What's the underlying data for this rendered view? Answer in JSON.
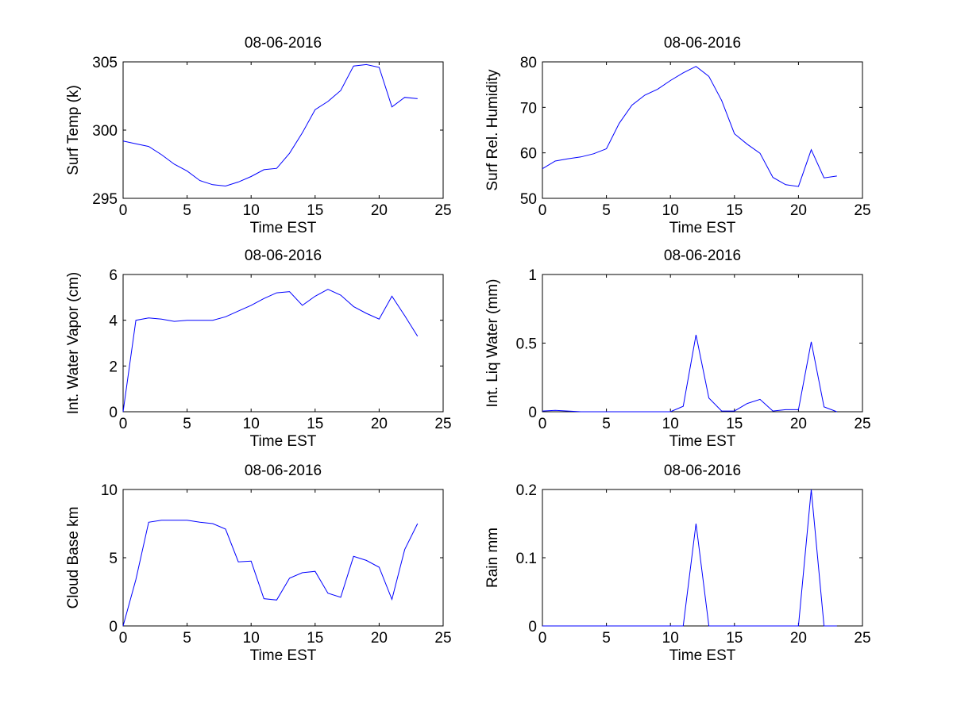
{
  "colors": {
    "line": "#0000ff",
    "axes": "#000000",
    "background": "#ffffff"
  },
  "chart_data": [
    {
      "type": "line",
      "title": "08-06-2016",
      "xlabel": "Time EST",
      "ylabel": "Surf Temp (k)",
      "xlim": [
        0,
        25
      ],
      "ylim": [
        295,
        305
      ],
      "xticks": [
        0,
        5,
        10,
        15,
        20,
        25
      ],
      "yticks": [
        295,
        300,
        305
      ],
      "x": [
        0,
        1,
        2,
        3,
        4,
        5,
        6,
        7,
        8,
        9,
        10,
        11,
        12,
        13,
        14,
        15,
        16,
        17,
        18,
        19,
        20,
        21,
        22,
        23
      ],
      "series": [
        {
          "name": "Surf Temp",
          "values": [
            299.2,
            299.0,
            298.8,
            298.2,
            297.5,
            297.0,
            296.3,
            296.0,
            295.9,
            296.2,
            296.6,
            297.1,
            297.2,
            298.3,
            299.8,
            301.5,
            302.1,
            302.9,
            304.7,
            304.8,
            304.6,
            301.7,
            302.4,
            302.3
          ]
        }
      ]
    },
    {
      "type": "line",
      "title": "08-06-2016",
      "xlabel": "Time EST",
      "ylabel": "Surf Rel. Humidity",
      "xlim": [
        0,
        25
      ],
      "ylim": [
        50,
        80
      ],
      "xticks": [
        0,
        5,
        10,
        15,
        20,
        25
      ],
      "yticks": [
        50,
        60,
        70,
        80
      ],
      "x": [
        0,
        1,
        2,
        3,
        4,
        5,
        6,
        7,
        8,
        9,
        10,
        11,
        12,
        13,
        14,
        15,
        16,
        17,
        18,
        19,
        20,
        21,
        22,
        23
      ],
      "series": [
        {
          "name": "Surf Rel. Humidity",
          "values": [
            56.5,
            58.2,
            58.7,
            59.1,
            59.8,
            60.9,
            66.5,
            70.5,
            72.7,
            74.0,
            75.9,
            77.6,
            79.0,
            76.8,
            71.5,
            64.2,
            61.9,
            59.9,
            54.6,
            53.0,
            52.6,
            60.7,
            54.5,
            54.9
          ]
        }
      ]
    },
    {
      "type": "line",
      "title": "08-06-2016",
      "xlabel": "Time EST",
      "ylabel": "Int. Water Vapor (cm)",
      "xlim": [
        0,
        25
      ],
      "ylim": [
        0,
        6
      ],
      "xticks": [
        0,
        5,
        10,
        15,
        20,
        25
      ],
      "yticks": [
        0,
        2,
        4,
        6
      ],
      "x": [
        0,
        1,
        2,
        3,
        4,
        5,
        6,
        7,
        8,
        9,
        10,
        11,
        12,
        13,
        14,
        15,
        16,
        17,
        18,
        19,
        20,
        21,
        22,
        23
      ],
      "series": [
        {
          "name": "Int. Water Vapor",
          "values": [
            0.0,
            4.0,
            4.1,
            4.05,
            3.95,
            4.0,
            4.0,
            4.0,
            4.15,
            4.4,
            4.65,
            4.95,
            5.2,
            5.25,
            4.65,
            5.05,
            5.35,
            5.1,
            4.6,
            4.3,
            4.05,
            5.05,
            4.2,
            3.3
          ]
        }
      ]
    },
    {
      "type": "line",
      "title": "08-06-2016",
      "xlabel": "Time EST",
      "ylabel": "Int. Liq Water (mm)",
      "xlim": [
        0,
        25
      ],
      "ylim": [
        0,
        1
      ],
      "xticks": [
        0,
        5,
        10,
        15,
        20,
        25
      ],
      "yticks": [
        0,
        0.5,
        1
      ],
      "x": [
        0,
        1,
        2,
        3,
        4,
        5,
        6,
        7,
        8,
        9,
        10,
        11,
        12,
        13,
        14,
        15,
        16,
        17,
        18,
        19,
        20,
        21,
        22,
        23
      ],
      "series": [
        {
          "name": "Int. Liq Water",
          "values": [
            0.005,
            0.01,
            0.005,
            0,
            0,
            0,
            0,
            0,
            0,
            0,
            0,
            0.04,
            0.56,
            0.1,
            0.005,
            0.005,
            0.06,
            0.09,
            0.005,
            0.015,
            0.015,
            0.51,
            0.035,
            0
          ]
        }
      ]
    },
    {
      "type": "line",
      "title": "08-06-2016",
      "xlabel": "Time EST",
      "ylabel": "Cloud Base km",
      "xlim": [
        0,
        25
      ],
      "ylim": [
        0,
        10
      ],
      "xticks": [
        0,
        5,
        10,
        15,
        20,
        25
      ],
      "yticks": [
        0,
        5,
        10
      ],
      "x": [
        0,
        1,
        2,
        3,
        4,
        5,
        6,
        7,
        8,
        9,
        10,
        11,
        12,
        13,
        14,
        15,
        16,
        17,
        18,
        19,
        20,
        21,
        22,
        23
      ],
      "series": [
        {
          "name": "Cloud Base",
          "values": [
            0.0,
            3.4,
            7.6,
            7.75,
            7.75,
            7.75,
            7.6,
            7.5,
            7.1,
            4.7,
            4.75,
            2.0,
            1.9,
            3.5,
            3.9,
            4.0,
            2.4,
            2.1,
            5.1,
            4.8,
            4.3,
            1.95,
            5.6,
            7.5
          ]
        }
      ]
    },
    {
      "type": "line",
      "title": "08-06-2016",
      "xlabel": "Time EST",
      "ylabel": "Rain mm",
      "xlim": [
        0,
        25
      ],
      "ylim": [
        0,
        0.2
      ],
      "xticks": [
        0,
        5,
        10,
        15,
        20,
        25
      ],
      "yticks": [
        0,
        0.1,
        0.2
      ],
      "x": [
        0,
        1,
        2,
        3,
        4,
        5,
        6,
        7,
        8,
        9,
        10,
        11,
        12,
        13,
        14,
        15,
        16,
        17,
        18,
        19,
        20,
        21,
        22,
        23
      ],
      "series": [
        {
          "name": "Rain",
          "values": [
            0,
            0,
            0,
            0,
            0,
            0,
            0,
            0,
            0,
            0,
            0,
            0,
            0.15,
            0,
            0,
            0,
            0,
            0,
            0,
            0,
            0,
            0.2,
            0,
            0
          ]
        }
      ]
    }
  ]
}
